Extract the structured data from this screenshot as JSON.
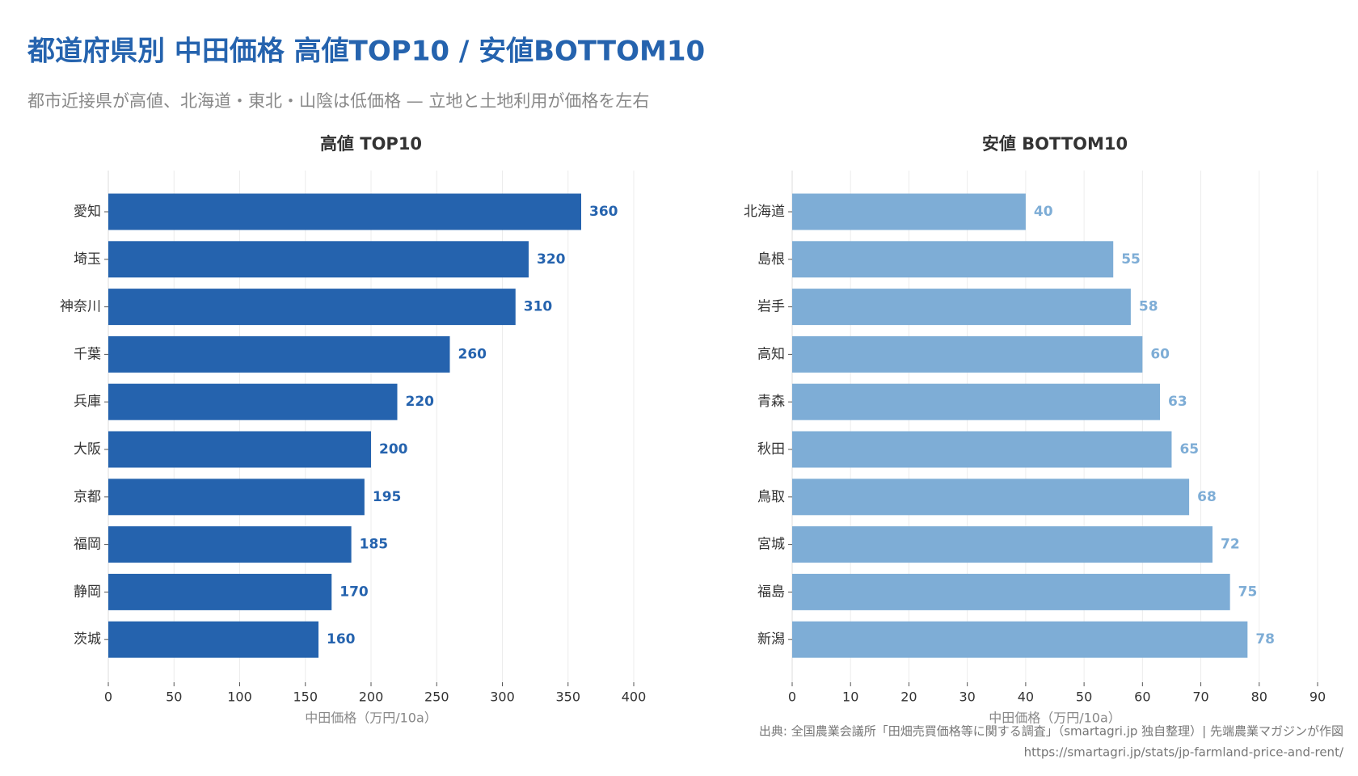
{
  "title": "都道府県別 中田価格 高値TOP10 / 安値BOTTOM10",
  "subtitle": "都市近接県が高値、北海道・東北・山陰は低価格 — 立地と土地利用が価格を左右",
  "source": "出典: 全国農業会議所「田畑売買価格等に関する調査」（smartagri.jp 独自整理）| 先端農業マガジンが作図",
  "url": "https://smartagri.jp/stats/jp-farmland-price-and-rent/",
  "chart_data": [
    {
      "type": "bar",
      "orientation": "horizontal",
      "title": "高値 TOP10",
      "categories": [
        "愛知",
        "埼玉",
        "神奈川",
        "千葉",
        "兵庫",
        "大阪",
        "京都",
        "福岡",
        "静岡",
        "茨城"
      ],
      "values": [
        360,
        320,
        310,
        260,
        220,
        200,
        195,
        185,
        170,
        160
      ],
      "color": "#2563ae",
      "xlabel": "中田価格（万円/10a）",
      "xlim": [
        0,
        400
      ],
      "xticks": [
        0,
        50,
        100,
        150,
        200,
        250,
        300,
        350,
        400
      ],
      "grid": true
    },
    {
      "type": "bar",
      "orientation": "horizontal",
      "title": "安値 BOTTOM10",
      "categories": [
        "北海道",
        "島根",
        "岩手",
        "高知",
        "青森",
        "秋田",
        "鳥取",
        "宮城",
        "福島",
        "新潟"
      ],
      "values": [
        40,
        55,
        58,
        60,
        63,
        65,
        68,
        72,
        75,
        78
      ],
      "color": "#7eadd6",
      "xlabel": "中田価格（万円/10a）",
      "xlim": [
        0,
        90
      ],
      "xticks": [
        0,
        10,
        20,
        30,
        40,
        50,
        60,
        70,
        80,
        90
      ],
      "grid": true
    }
  ]
}
